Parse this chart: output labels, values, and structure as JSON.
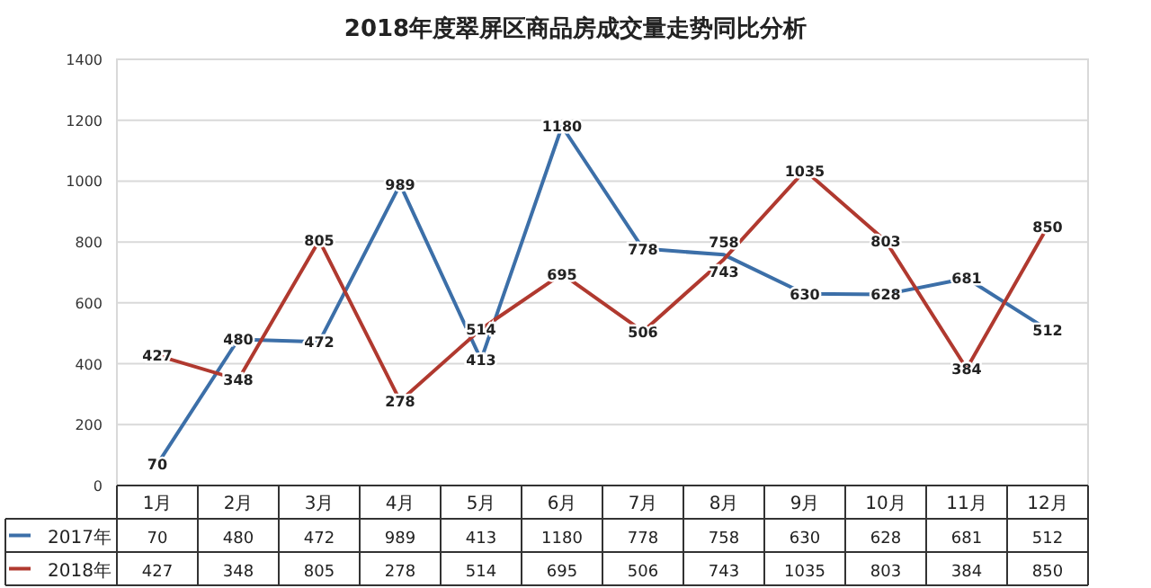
{
  "chart_data": {
    "type": "line",
    "title": "2018年度翠屏区商品房成交量走势同比分析",
    "categories": [
      "1月",
      "2月",
      "3月",
      "4月",
      "5月",
      "6月",
      "7月",
      "8月",
      "9月",
      "10月",
      "11月",
      "12月"
    ],
    "series": [
      {
        "name": "2017年",
        "color": "#3c6fa8",
        "values": [
          70,
          480,
          472,
          989,
          413,
          1180,
          778,
          758,
          630,
          628,
          681,
          512
        ],
        "value_labels": [
          "70",
          "480",
          "472",
          "989",
          "413",
          "1180",
          "778",
          "758",
          "630",
          "628",
          "681",
          "512"
        ]
      },
      {
        "name": "2018年",
        "color": "#b0392f",
        "values": [
          427,
          348,
          805,
          278,
          514,
          695,
          506,
          743,
          1035,
          803,
          384,
          850
        ],
        "value_labels": [
          "427",
          "348",
          "805",
          "278",
          "514",
          "695",
          "506",
          "743",
          "1035",
          "803",
          "384",
          "850"
        ]
      }
    ],
    "ylim": [
      0,
      1400
    ],
    "yticks": [
      0,
      200,
      400,
      600,
      800,
      1000,
      1200,
      1400
    ],
    "annotations": [
      {
        "text": "70",
        "x": "1月",
        "y": 70
      },
      {
        "text": "480",
        "x": "2月",
        "y": 480
      },
      {
        "text": "472",
        "x": "3月",
        "y": 472
      },
      {
        "text": "989",
        "x": "4月",
        "y": 989
      },
      {
        "text": "413",
        "x": "5月",
        "y": 413
      },
      {
        "text": "1180",
        "x": "6月",
        "y": 1180
      },
      {
        "text": "778",
        "x": "7月",
        "y": 778
      },
      {
        "text": "758",
        "x": "8月",
        "y": 758
      },
      {
        "text": "630",
        "x": "9月",
        "y": 630
      },
      {
        "text": "628",
        "x": "10月",
        "y": 628
      },
      {
        "text": "681",
        "x": "11月",
        "y": 681
      },
      {
        "text": "512",
        "x": "12月",
        "y": 512
      },
      {
        "text": "427",
        "x": "1月",
        "y": 427
      },
      {
        "text": "348",
        "x": "2月",
        "y": 348
      },
      {
        "text": "805",
        "x": "3月",
        "y": 805
      },
      {
        "text": "278",
        "x": "4月",
        "y": 278
      },
      {
        "text": "514",
        "x": "5月",
        "y": 514
      },
      {
        "text": "695",
        "x": "6月",
        "y": 695
      },
      {
        "text": "506",
        "x": "7月",
        "y": 506
      },
      {
        "text": "743",
        "x": "8月",
        "y": 743
      },
      {
        "text": "1035",
        "x": "9月",
        "y": 1035
      },
      {
        "text": "803",
        "x": "10月",
        "y": 803
      },
      {
        "text": "384",
        "x": "11月",
        "y": 384
      },
      {
        "text": "850",
        "x": "12月",
        "y": 850
      }
    ],
    "grid": "y",
    "legend": "bottom",
    "marker": "none",
    "line_style": "solid"
  }
}
